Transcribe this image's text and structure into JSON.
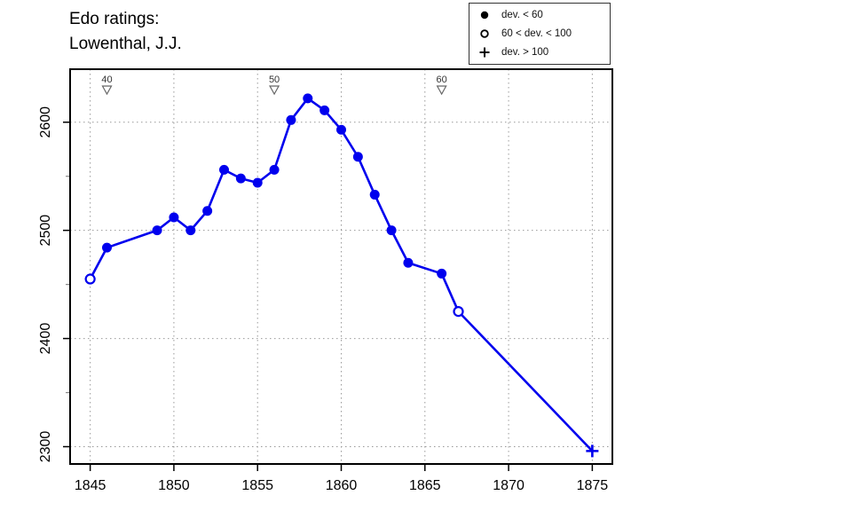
{
  "title": {
    "line1": "Edo ratings:",
    "line2": "Lowenthal, J.J."
  },
  "legend": {
    "items": [
      {
        "symbol": "filled-circle",
        "label": "dev. < 60"
      },
      {
        "symbol": "open-circle",
        "label": "60 < dev. < 100"
      },
      {
        "symbol": "plus",
        "label": "dev. > 100"
      }
    ]
  },
  "chart_data": {
    "type": "line",
    "title": "Edo ratings: Lowenthal, J.J.",
    "xlabel": "",
    "ylabel": "",
    "xlim": [
      1843.8,
      1876.2
    ],
    "ylim": [
      2284,
      2649
    ],
    "x_ticks": [
      1845,
      1850,
      1855,
      1860,
      1865,
      1870,
      1875
    ],
    "y_ticks": [
      2300,
      2400,
      2500,
      2600
    ],
    "y_minor_ticks": [
      2350,
      2450,
      2550
    ],
    "grid": "dotted",
    "legend_position": "top-right-outside",
    "line_color": "#0000EE",
    "grid_color": "#999999",
    "points": [
      {
        "year": 1845,
        "rating": 2455,
        "marker": "open-circle"
      },
      {
        "year": 1846,
        "rating": 2484,
        "marker": "filled-circle"
      },
      {
        "year": 1849,
        "rating": 2500,
        "marker": "filled-circle"
      },
      {
        "year": 1850,
        "rating": 2512,
        "marker": "filled-circle"
      },
      {
        "year": 1851,
        "rating": 2500,
        "marker": "filled-circle"
      },
      {
        "year": 1852,
        "rating": 2518,
        "marker": "filled-circle"
      },
      {
        "year": 1853,
        "rating": 2556,
        "marker": "filled-circle"
      },
      {
        "year": 1854,
        "rating": 2548,
        "marker": "filled-circle"
      },
      {
        "year": 1855,
        "rating": 2544,
        "marker": "filled-circle"
      },
      {
        "year": 1856,
        "rating": 2556,
        "marker": "filled-circle"
      },
      {
        "year": 1857,
        "rating": 2602,
        "marker": "filled-circle"
      },
      {
        "year": 1858,
        "rating": 2622,
        "marker": "filled-circle"
      },
      {
        "year": 1859,
        "rating": 2611,
        "marker": "filled-circle"
      },
      {
        "year": 1860,
        "rating": 2593,
        "marker": "filled-circle"
      },
      {
        "year": 1861,
        "rating": 2568,
        "marker": "filled-circle"
      },
      {
        "year": 1862,
        "rating": 2533,
        "marker": "filled-circle"
      },
      {
        "year": 1863,
        "rating": 2500,
        "marker": "filled-circle"
      },
      {
        "year": 1864,
        "rating": 2470,
        "marker": "filled-circle"
      },
      {
        "year": 1866,
        "rating": 2460,
        "marker": "filled-circle"
      },
      {
        "year": 1867,
        "rating": 2425,
        "marker": "open-circle"
      },
      {
        "year": 1875,
        "rating": 2296,
        "marker": "plus"
      }
    ],
    "age_markers": [
      {
        "label": "40",
        "year": 1846
      },
      {
        "label": "50",
        "year": 1856
      },
      {
        "label": "60",
        "year": 1866
      }
    ]
  }
}
